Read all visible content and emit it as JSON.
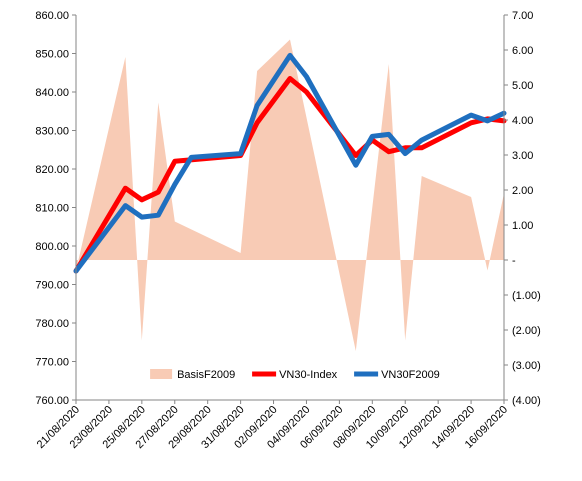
{
  "chart_data": {
    "type": "line",
    "title": "",
    "xlabel": "",
    "ylabel": "",
    "categories": [
      "21/08/2020",
      "24/08/2020",
      "25/08/2020",
      "26/08/2020",
      "27/08/2020",
      "28/08/2020",
      "31/08/2020",
      "01/09/2020",
      "04/09/2020",
      "07/09/2020",
      "08/09/2020",
      "09/09/2020",
      "10/09/2020",
      "11/09/2020",
      "14/09/2020",
      "15/09/2020",
      "16/09/2020"
    ],
    "x_tick_labels": [
      "21/08/2020",
      "23/08/2020",
      "25/08/2020",
      "27/08/2020",
      "29/08/2020",
      "31/08/2020",
      "02/09/2020",
      "04/09/2020",
      "06/09/2020",
      "08/09/2020",
      "10/09/2020",
      "12/09/2020",
      "14/09/2020",
      "16/09/2020"
    ],
    "x_range": [
      "21/08/2020",
      "16/09/2020"
    ],
    "y_left": {
      "min": 760,
      "max": 860,
      "step": 10,
      "tick_labels": [
        "760.00",
        "770.00",
        "780.00",
        "790.00",
        "800.00",
        "810.00",
        "820.00",
        "830.00",
        "840.00",
        "850.00",
        "860.00"
      ]
    },
    "y_right": {
      "min": -4,
      "max": 7,
      "step": 1,
      "tick_labels": [
        "(4.00)",
        "(3.00)",
        "(2.00)",
        "(1.00)",
        "-",
        "1.00",
        "2.00",
        "3.00",
        "4.00",
        "5.00",
        "6.00",
        "7.00"
      ]
    },
    "series": [
      {
        "name": "BasisF2009",
        "type": "area",
        "axis": "right",
        "color": "#f8cbb5",
        "points": [
          {
            "x": "21/08/2020",
            "y": -0.3
          },
          {
            "x": "24/08/2020",
            "y": 5.8
          },
          {
            "x": "25/08/2020",
            "y": -2.3
          },
          {
            "x": "26/08/2020",
            "y": 4.5
          },
          {
            "x": "27/08/2020",
            "y": 1.1
          },
          {
            "x": "31/08/2020",
            "y": 0.2
          },
          {
            "x": "01/09/2020",
            "y": 5.4
          },
          {
            "x": "03/09/2020",
            "y": 6.3
          },
          {
            "x": "07/09/2020",
            "y": -2.6
          },
          {
            "x": "09/09/2020",
            "y": 5.6
          },
          {
            "x": "10/09/2020",
            "y": -2.3
          },
          {
            "x": "11/09/2020",
            "y": 2.4
          },
          {
            "x": "14/09/2020",
            "y": 1.8
          },
          {
            "x": "15/09/2020",
            "y": -0.3
          },
          {
            "x": "16/09/2020",
            "y": 1.9
          }
        ]
      },
      {
        "name": "VN30-Index",
        "type": "line",
        "axis": "left",
        "color": "#ff0000",
        "points": [
          {
            "x": "21/08/2020",
            "y": 793.5
          },
          {
            "x": "24/08/2020",
            "y": 815
          },
          {
            "x": "25/08/2020",
            "y": 812
          },
          {
            "x": "26/08/2020",
            "y": 814
          },
          {
            "x": "27/08/2020",
            "y": 822
          },
          {
            "x": "31/08/2020",
            "y": 823.5
          },
          {
            "x": "01/09/2020",
            "y": 832
          },
          {
            "x": "03/09/2020",
            "y": 843.5
          },
          {
            "x": "04/09/2020",
            "y": 840
          },
          {
            "x": "07/09/2020",
            "y": 823.5
          },
          {
            "x": "08/09/2020",
            "y": 827.5
          },
          {
            "x": "09/09/2020",
            "y": 824.5
          },
          {
            "x": "10/09/2020",
            "y": 825.5
          },
          {
            "x": "11/09/2020",
            "y": 825.5
          },
          {
            "x": "14/09/2020",
            "y": 832
          },
          {
            "x": "15/09/2020",
            "y": 833
          },
          {
            "x": "16/09/2020",
            "y": 832.5
          }
        ]
      },
      {
        "name": "VN30F2009",
        "type": "line",
        "axis": "left",
        "color": "#1f6fbf",
        "points": [
          {
            "x": "21/08/2020",
            "y": 793.5
          },
          {
            "x": "24/08/2020",
            "y": 810.5
          },
          {
            "x": "25/08/2020",
            "y": 807.5
          },
          {
            "x": "26/08/2020",
            "y": 808
          },
          {
            "x": "27/08/2020",
            "y": 816
          },
          {
            "x": "28/08/2020",
            "y": 823
          },
          {
            "x": "31/08/2020",
            "y": 824
          },
          {
            "x": "01/09/2020",
            "y": 836.5
          },
          {
            "x": "03/09/2020",
            "y": 849.5
          },
          {
            "x": "04/09/2020",
            "y": 844
          },
          {
            "x": "07/09/2020",
            "y": 821
          },
          {
            "x": "08/09/2020",
            "y": 828.5
          },
          {
            "x": "09/09/2020",
            "y": 829
          },
          {
            "x": "10/09/2020",
            "y": 824
          },
          {
            "x": "11/09/2020",
            "y": 827.5
          },
          {
            "x": "14/09/2020",
            "y": 834
          },
          {
            "x": "15/09/2020",
            "y": 832.5
          },
          {
            "x": "16/09/2020",
            "y": 834.5
          }
        ]
      }
    ],
    "legend": {
      "placement": "bottom-center",
      "items": [
        "BasisF2009",
        "VN30-Index",
        "VN30F2009"
      ]
    },
    "grid": false
  }
}
